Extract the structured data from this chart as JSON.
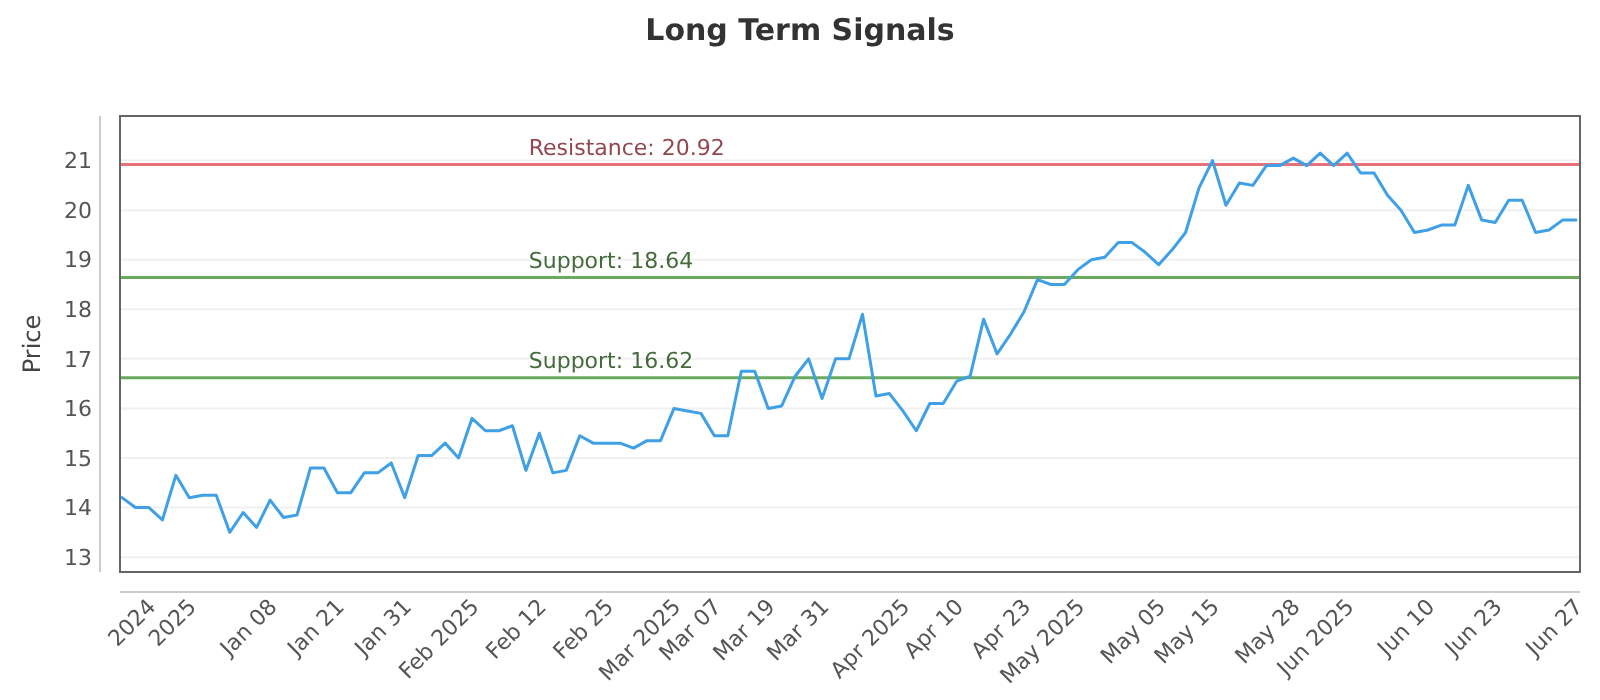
{
  "chart_data": {
    "type": "line",
    "title": "Long Term Signals",
    "ylabel": "Price",
    "ylim": [
      12.7,
      21.9
    ],
    "categories": [
      null,
      null,
      "2024",
      null,
      null,
      "2025",
      null,
      null,
      null,
      null,
      null,
      "Jan 08",
      null,
      null,
      null,
      null,
      "Jan 21",
      null,
      null,
      null,
      null,
      "Jan 31",
      null,
      null,
      null,
      null,
      "Feb 2025",
      null,
      null,
      null,
      null,
      "Feb 12",
      null,
      null,
      null,
      null,
      "Feb 25",
      null,
      null,
      null,
      null,
      "Mar 2025",
      null,
      null,
      "Mar 07",
      null,
      null,
      null,
      "Mar 19",
      null,
      null,
      null,
      "Mar 31",
      null,
      null,
      null,
      null,
      null,
      "Apr 2025",
      null,
      null,
      null,
      "Apr 10",
      null,
      null,
      null,
      null,
      "Apr 23",
      null,
      null,
      null,
      "May 2025",
      null,
      null,
      null,
      null,
      null,
      "May 05",
      null,
      null,
      null,
      "May 15",
      null,
      null,
      null,
      null,
      null,
      "May 28",
      null,
      null,
      null,
      "Jun 2025",
      null,
      null,
      null,
      null,
      null,
      "Jun 10",
      null,
      null,
      null,
      null,
      "Jun 23",
      null,
      null,
      null,
      null,
      null,
      "Jun 27"
    ],
    "yticks": [
      13,
      14,
      15,
      16,
      17,
      18,
      19,
      20,
      21
    ],
    "grid": "y",
    "marker": "none",
    "line_style": "solid",
    "series": [
      {
        "color": "#3fa0e6",
        "values": [
          14.2,
          14.0,
          14.0,
          13.75,
          14.65,
          14.2,
          14.25,
          14.25,
          13.5,
          13.9,
          13.6,
          14.15,
          13.8,
          13.85,
          14.8,
          14.8,
          14.3,
          14.3,
          14.7,
          14.7,
          14.9,
          14.2,
          15.05,
          15.05,
          15.3,
          15.0,
          15.8,
          15.55,
          15.55,
          15.65,
          14.75,
          15.5,
          14.7,
          14.75,
          15.45,
          15.3,
          15.3,
          15.3,
          15.2,
          15.35,
          15.35,
          16.0,
          15.95,
          15.9,
          15.45,
          15.45,
          16.75,
          16.75,
          16.0,
          16.05,
          16.65,
          17.0,
          16.2,
          17.0,
          17.0,
          17.9,
          16.25,
          16.3,
          15.95,
          15.55,
          16.1,
          16.1,
          16.55,
          16.65,
          17.8,
          17.1,
          17.5,
          17.95,
          18.6,
          18.5,
          18.5,
          18.8,
          19.0,
          19.05,
          19.35,
          19.35,
          19.15,
          18.9,
          19.2,
          19.55,
          20.45,
          21.0,
          20.1,
          20.55,
          20.5,
          20.9,
          20.9,
          21.05,
          20.9,
          21.15,
          20.9,
          21.15,
          20.75,
          20.75,
          20.3,
          20.0,
          19.55,
          19.6,
          19.7,
          19.7,
          20.5,
          19.8,
          19.75,
          20.2,
          20.2,
          19.55,
          19.6,
          19.8,
          19.8
        ]
      }
    ],
    "ref_lines": [
      {
        "axis": "y",
        "value": 20.92,
        "label": "Resistance: 20.92",
        "color": "#e8707a"
      },
      {
        "axis": "y",
        "value": 18.64,
        "label": "Support: 18.64",
        "color": "#6aaa5e"
      },
      {
        "axis": "y",
        "value": 16.62,
        "label": "Support: 16.62",
        "color": "#6aaa5e"
      }
    ]
  }
}
